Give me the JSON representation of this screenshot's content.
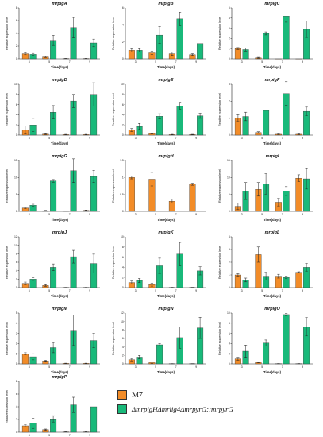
{
  "colors": {
    "m7": "#f28c28",
    "mutant": "#19b97a",
    "axis": "#222222",
    "error_bar": "#222222"
  },
  "legend": [
    {
      "label": "M7",
      "color": "#f28c28"
    },
    {
      "label": "ΔmrpigHΔmrlig4ΔmrpyrG::mrpyrG",
      "color": "#19b97a"
    }
  ],
  "chart_data": [
    {
      "type": "bar",
      "title": "mrpigA",
      "xlabel": "Time(days)",
      "ylabel": "Relative expression level",
      "categories": [
        "3",
        "5",
        "7",
        "9"
      ],
      "ylim": [
        0,
        8
      ],
      "yticks": [
        0,
        2,
        4,
        6,
        8
      ],
      "series": [
        {
          "name": "M7",
          "values": [
            0.8,
            0.3,
            0.05,
            0.05
          ],
          "errors": [
            0.15,
            0.1,
            0.02,
            0.02
          ]
        },
        {
          "name": "ΔmrpigHΔmrlig4ΔmrpyrG::mrpyrG",
          "values": [
            0.7,
            2.9,
            4.9,
            2.5
          ],
          "errors": [
            0.15,
            0.8,
            1.6,
            0.6
          ]
        }
      ]
    },
    {
      "type": "bar",
      "title": "mrpigB",
      "xlabel": "Time(days)",
      "ylabel": "Relative expression level",
      "categories": [
        "3",
        "5",
        "7",
        "9"
      ],
      "ylim": [
        0,
        6
      ],
      "yticks": [
        0,
        2,
        4,
        6
      ],
      "series": [
        {
          "name": "M7",
          "values": [
            1.0,
            0.7,
            0.6,
            0.5
          ],
          "errors": [
            0.2,
            0.2,
            0.2,
            0.1
          ]
        },
        {
          "name": "ΔmrpigHΔmrlig4ΔmrpyrG::mrpyrG",
          "values": [
            1.0,
            2.8,
            4.7,
            1.8
          ],
          "errors": [
            0.2,
            1.0,
            0.8,
            0.0
          ]
        }
      ]
    },
    {
      "type": "bar",
      "title": "mrpigC",
      "xlabel": "Time(days)",
      "ylabel": "Relative expression level",
      "categories": [
        "3",
        "5",
        "7",
        "9"
      ],
      "ylim": [
        0,
        5
      ],
      "yticks": [
        0,
        1,
        2,
        3,
        4,
        5
      ],
      "series": [
        {
          "name": "M7",
          "values": [
            1.0,
            0.1,
            0.0,
            0.0
          ],
          "errors": [
            0.1,
            0.05,
            0.0,
            0.0
          ]
        },
        {
          "name": "ΔmrpigHΔmrlig4ΔmrpyrG::mrpyrG",
          "values": [
            0.9,
            2.5,
            4.2,
            2.9
          ],
          "errors": [
            0.15,
            0.15,
            0.6,
            0.8
          ]
        }
      ]
    },
    {
      "type": "bar",
      "title": "mrpigD",
      "xlabel": "Time(days)",
      "ylabel": "Relative expression level",
      "categories": [
        "3",
        "5",
        "7",
        "9"
      ],
      "ylim": [
        0,
        10
      ],
      "yticks": [
        0,
        2,
        4,
        6,
        8,
        10
      ],
      "series": [
        {
          "name": "M7",
          "values": [
            1.0,
            0.2,
            0.1,
            0.1
          ],
          "errors": [
            0.8,
            0.1,
            0.05,
            0.05
          ]
        },
        {
          "name": "ΔmrpigHΔmrlig4ΔmrpyrG::mrpyrG",
          "values": [
            2.0,
            4.5,
            6.7,
            8.0
          ],
          "errors": [
            1.3,
            1.3,
            1.3,
            2.3
          ]
        }
      ]
    },
    {
      "type": "bar",
      "title": "mrpigE",
      "xlabel": "Time(days)",
      "ylabel": "Relative expression level",
      "categories": [
        "3",
        "5",
        "7",
        "9"
      ],
      "ylim": [
        0,
        10
      ],
      "yticks": [
        0,
        2,
        4,
        6,
        8,
        10
      ],
      "series": [
        {
          "name": "M7",
          "values": [
            1.0,
            0.3,
            0.1,
            0.1
          ],
          "errors": [
            0.3,
            0.1,
            0.05,
            0.05
          ]
        },
        {
          "name": "ΔmrpigHΔmrlig4ΔmrpyrG::mrpyrG",
          "values": [
            1.7,
            3.7,
            5.7,
            3.8
          ],
          "errors": [
            0.6,
            0.5,
            0.6,
            0.5
          ]
        }
      ]
    },
    {
      "type": "bar",
      "title": "mrpigF",
      "xlabel": "Time(days)",
      "ylabel": "Relative expression level",
      "categories": [
        "3",
        "5",
        "7",
        "9"
      ],
      "ylim": [
        0,
        3
      ],
      "yticks": [
        0,
        1,
        2,
        3
      ],
      "series": [
        {
          "name": "M7",
          "values": [
            1.0,
            0.15,
            0.05,
            0.05
          ],
          "errors": [
            0.2,
            0.05,
            0.02,
            0.02
          ]
        },
        {
          "name": "ΔmrpigHΔmrlig4ΔmrpyrG::mrpyrG",
          "values": [
            1.1,
            1.45,
            2.45,
            1.4
          ],
          "errors": [
            0.25,
            0.0,
            0.7,
            0.25
          ]
        }
      ]
    },
    {
      "type": "bar",
      "title": "mrpigG",
      "xlabel": "Time(days)",
      "ylabel": "Relative expression level",
      "categories": [
        "3",
        "5",
        "7",
        "9"
      ],
      "ylim": [
        0,
        15
      ],
      "yticks": [
        0,
        5,
        10,
        15
      ],
      "series": [
        {
          "name": "M7",
          "values": [
            1.0,
            0.2,
            0.1,
            0.3
          ],
          "errors": [
            0.2,
            0.1,
            0.05,
            0.1
          ]
        },
        {
          "name": "ΔmrpigHΔmrlig4ΔmrpyrG::mrpyrG",
          "values": [
            1.8,
            9.0,
            12.0,
            10.3
          ],
          "errors": [
            0.3,
            0.4,
            3.5,
            1.8
          ]
        }
      ]
    },
    {
      "type": "bar",
      "title": "mrpigH",
      "xlabel": "Time(days)",
      "ylabel": "Relative expression level",
      "categories": [
        "3",
        "5",
        "7",
        "9"
      ],
      "ylim": [
        0,
        1.5
      ],
      "yticks": [
        0,
        0.5,
        1.0,
        1.5
      ],
      "series": [
        {
          "name": "M7",
          "values": [
            1.0,
            0.95,
            0.3,
            0.8
          ],
          "errors": [
            0.04,
            0.2,
            0.06,
            0.03
          ]
        }
      ]
    },
    {
      "type": "bar",
      "title": "mrpigI",
      "xlabel": "Time(days)",
      "ylabel": "Relative expression level",
      "categories": [
        "3",
        "5",
        "7",
        "9"
      ],
      "ylim": [
        0,
        15
      ],
      "yticks": [
        0,
        5,
        10,
        15
      ],
      "series": [
        {
          "name": "M7",
          "values": [
            1.5,
            6.5,
            2.7,
            9.8
          ],
          "errors": [
            1.0,
            2.0,
            1.1,
            1.0
          ]
        },
        {
          "name": "ΔmrpigHΔmrlig4ΔmrpyrG::mrpyrG",
          "values": [
            6.0,
            8.1,
            6.0,
            9.6
          ],
          "errors": [
            2.5,
            3.0,
            1.3,
            3.0
          ]
        }
      ]
    },
    {
      "type": "bar",
      "title": "mrpigJ",
      "xlabel": "Time(days)",
      "ylabel": "Relative expression level",
      "categories": [
        "3",
        "5",
        "7",
        "9"
      ],
      "ylim": [
        0,
        12
      ],
      "yticks": [
        0,
        2,
        4,
        6,
        8,
        10,
        12
      ],
      "series": [
        {
          "name": "M7",
          "values": [
            1.0,
            0.5,
            0.05,
            0.05
          ],
          "errors": [
            0.3,
            0.2,
            0.02,
            0.02
          ]
        },
        {
          "name": "ΔmrpigHΔmrlig4ΔmrpyrG::mrpyrG",
          "values": [
            2.0,
            4.8,
            7.3,
            5.7
          ],
          "errors": [
            0.3,
            0.8,
            1.5,
            2.2
          ]
        }
      ]
    },
    {
      "type": "bar",
      "title": "mrpigK",
      "xlabel": "Time(days)",
      "ylabel": "Relative expression level",
      "categories": [
        "3",
        "5",
        "7",
        "9"
      ],
      "ylim": [
        0,
        10
      ],
      "yticks": [
        0,
        2,
        4,
        6,
        8,
        10
      ],
      "series": [
        {
          "name": "M7",
          "values": [
            1.0,
            0.6,
            0.05,
            0.05
          ],
          "errors": [
            0.3,
            0.3,
            0.02,
            0.02
          ]
        },
        {
          "name": "ΔmrpigHΔmrlig4ΔmrpyrG::mrpyrG",
          "values": [
            1.4,
            4.3,
            6.6,
            3.3
          ],
          "errors": [
            0.4,
            1.5,
            2.3,
            0.8
          ]
        }
      ]
    },
    {
      "type": "bar",
      "title": "mrpigL",
      "xlabel": "Time(days)",
      "ylabel": "Relative expression level",
      "categories": [
        "3",
        "5",
        "7",
        "9"
      ],
      "ylim": [
        0,
        4
      ],
      "yticks": [
        0,
        1,
        2,
        3,
        4
      ],
      "series": [
        {
          "name": "M7",
          "values": [
            1.0,
            2.6,
            0.9,
            1.2
          ],
          "errors": [
            0.1,
            0.6,
            0.15,
            0.05
          ]
        },
        {
          "name": "ΔmrpigHΔmrlig4ΔmrpyrG::mrpyrG",
          "values": [
            0.6,
            0.9,
            0.8,
            1.6
          ],
          "errors": [
            0.15,
            0.3,
            0.1,
            0.3
          ]
        }
      ]
    },
    {
      "type": "bar",
      "title": "mrpigM",
      "xlabel": "Time(days)",
      "ylabel": "Relative expression level",
      "categories": [
        "3",
        "5",
        "7",
        "9"
      ],
      "ylim": [
        0,
        5
      ],
      "yticks": [
        0,
        1,
        2,
        3,
        4,
        5
      ],
      "series": [
        {
          "name": "M7",
          "values": [
            1.0,
            0.3,
            0.05,
            0.05
          ],
          "errors": [
            0.1,
            0.05,
            0.02,
            0.02
          ]
        },
        {
          "name": "ΔmrpigHΔmrlig4ΔmrpyrG::mrpyrG",
          "values": [
            0.7,
            1.6,
            3.3,
            2.3
          ],
          "errors": [
            0.3,
            0.5,
            1.5,
            0.7
          ]
        }
      ]
    },
    {
      "type": "bar",
      "title": "mrpigN",
      "xlabel": "Time(days)",
      "ylabel": "Relative expression level",
      "categories": [
        "3",
        "5",
        "7",
        "9"
      ],
      "ylim": [
        0,
        12
      ],
      "yticks": [
        0,
        2,
        4,
        6,
        8,
        10,
        12
      ],
      "series": [
        {
          "name": "M7",
          "values": [
            1.0,
            0.3,
            0.05,
            0.05
          ],
          "errors": [
            0.3,
            0.2,
            0.02,
            0.02
          ]
        },
        {
          "name": "ΔmrpigHΔmrlig4ΔmrpyrG::mrpyrG",
          "values": [
            1.6,
            4.5,
            6.2,
            8.5
          ],
          "errors": [
            0.4,
            0.3,
            2.5,
            2.5
          ]
        }
      ]
    },
    {
      "type": "bar",
      "title": "mrpigO",
      "xlabel": "Time(days)",
      "ylabel": "Relative expression level",
      "categories": [
        "3",
        "5",
        "7",
        "9"
      ],
      "ylim": [
        0,
        10
      ],
      "yticks": [
        0,
        2,
        4,
        6,
        8,
        10
      ],
      "series": [
        {
          "name": "M7",
          "values": [
            1.0,
            0.3,
            0.05,
            0.05
          ],
          "errors": [
            0.3,
            0.1,
            0.02,
            0.02
          ]
        },
        {
          "name": "ΔmrpigHΔmrlig4ΔmrpyrG::mrpyrG",
          "values": [
            2.5,
            4.1,
            9.7,
            7.3
          ],
          "errors": [
            1.2,
            0.6,
            0.2,
            1.8
          ]
        }
      ]
    },
    {
      "type": "bar",
      "title": "mrpigP",
      "xlabel": "Time(days)",
      "ylabel": "Relative expression level",
      "categories": [
        "3",
        "5",
        "7",
        "9"
      ],
      "ylim": [
        0,
        8
      ],
      "yticks": [
        0,
        2,
        4,
        6,
        8
      ],
      "series": [
        {
          "name": "M7",
          "values": [
            1.0,
            0.4,
            0.05,
            0.05
          ],
          "errors": [
            0.15,
            0.1,
            0.02,
            0.02
          ]
        },
        {
          "name": "ΔmrpigHΔmrlig4ΔmrpyrG::mrpyrG",
          "values": [
            1.4,
            2.1,
            4.3,
            4.0
          ],
          "errors": [
            0.8,
            0.5,
            1.2,
            0.0
          ]
        }
      ]
    }
  ]
}
